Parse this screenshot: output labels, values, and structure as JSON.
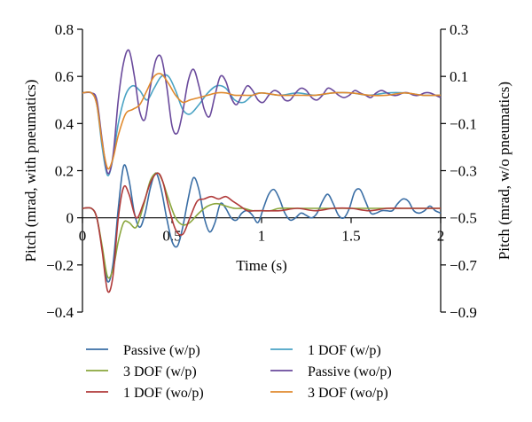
{
  "chart_data": {
    "type": "line",
    "title": "",
    "xlabel": "Time (s)",
    "ylabel_left": "Pitch (mrad, with pneumatics)",
    "ylabel_right": "Pitch (mrad, w/o pneumatics)",
    "xlim": [
      0,
      2
    ],
    "ylim_left": [
      -0.4,
      0.8
    ],
    "ylim_right": [
      -0.9,
      0.3
    ],
    "x_ticks": [
      0,
      0.5,
      1,
      1.5,
      2
    ],
    "x_tick_labels": [
      "0",
      "0.5",
      "1",
      "1.5",
      "2"
    ],
    "y_left_ticks": [
      -0.4,
      -0.2,
      0,
      0.2,
      0.4,
      0.6,
      0.8
    ],
    "y_left_tick_labels": [
      "−0.4",
      "−0.2",
      "0",
      "0.2",
      "0.4",
      "0.6",
      "0.8"
    ],
    "y_right_ticks": [
      -0.9,
      -0.7,
      -0.5,
      -0.3,
      -0.1,
      0.1,
      0.3
    ],
    "y_right_tick_labels": [
      "−0.9",
      "−0.7",
      "−0.5",
      "−0.3",
      "−0.1",
      "0.1",
      "0.3"
    ],
    "grid": false,
    "legend_position": "bottom",
    "series": [
      {
        "name": "Passive (w/p)",
        "axis": "left",
        "color": "#3a6ea5",
        "x": [
          0,
          0.05,
          0.08,
          0.11,
          0.14,
          0.17,
          0.2,
          0.23,
          0.26,
          0.29,
          0.32,
          0.35,
          0.38,
          0.41,
          0.44,
          0.47,
          0.5,
          0.53,
          0.56,
          0.59,
          0.62,
          0.65,
          0.68,
          0.71,
          0.74,
          0.77,
          0.8,
          0.83,
          0.86,
          0.89,
          0.92,
          0.95,
          0.98,
          1.01,
          1.04,
          1.07,
          1.1,
          1.13,
          1.16,
          1.19,
          1.22,
          1.25,
          1.28,
          1.31,
          1.34,
          1.37,
          1.4,
          1.43,
          1.46,
          1.49,
          1.52,
          1.55,
          1.58,
          1.61,
          1.64,
          1.67,
          1.7,
          1.73,
          1.76,
          1.79,
          1.82,
          1.85,
          1.88,
          1.91,
          1.94,
          1.97,
          2
        ],
        "y": [
          0.04,
          0.04,
          0.0,
          -0.13,
          -0.27,
          -0.2,
          0.04,
          0.22,
          0.16,
          0.02,
          -0.04,
          0.02,
          0.13,
          0.19,
          0.12,
          0.0,
          -0.1,
          -0.12,
          -0.04,
          0.08,
          0.17,
          0.12,
          0.0,
          -0.06,
          -0.02,
          0.06,
          0.04,
          0.0,
          -0.01,
          0.02,
          0.03,
          0.01,
          -0.02,
          0.04,
          0.1,
          0.12,
          0.08,
          0.02,
          -0.01,
          0.0,
          0.02,
          0.01,
          0.0,
          0.02,
          0.07,
          0.1,
          0.06,
          0.01,
          0.0,
          0.04,
          0.11,
          0.12,
          0.07,
          0.02,
          0.02,
          0.03,
          0.03,
          0.03,
          0.06,
          0.08,
          0.07,
          0.03,
          0.02,
          0.03,
          0.05,
          0.03,
          0.02
        ]
      },
      {
        "name": "3 DOF (w/p)",
        "axis": "left",
        "color": "#8aa63c",
        "x": [
          0,
          0.05,
          0.08,
          0.11,
          0.14,
          0.17,
          0.2,
          0.23,
          0.26,
          0.3,
          0.34,
          0.38,
          0.42,
          0.45,
          0.48,
          0.52,
          0.56,
          0.6,
          0.65,
          0.7,
          0.75,
          0.8,
          0.85,
          0.9,
          0.95,
          1.0,
          1.05,
          1.1,
          1.2,
          1.3,
          1.4,
          1.5,
          1.6,
          1.7,
          1.8,
          1.9,
          2
        ],
        "y": [
          0.04,
          0.04,
          0.0,
          -0.12,
          -0.25,
          -0.22,
          -0.1,
          -0.02,
          -0.02,
          -0.04,
          0.05,
          0.16,
          0.19,
          0.15,
          0.08,
          0.0,
          -0.03,
          -0.02,
          0.02,
          0.05,
          0.06,
          0.05,
          0.04,
          0.04,
          0.03,
          0.03,
          0.03,
          0.04,
          0.04,
          0.04,
          0.04,
          0.04,
          0.04,
          0.04,
          0.04,
          0.04,
          0.04
        ]
      },
      {
        "name": "1 DOF (wo/p)",
        "axis": "right",
        "color": "#b03a3a",
        "x": [
          0,
          0.05,
          0.08,
          0.11,
          0.14,
          0.17,
          0.2,
          0.23,
          0.26,
          0.3,
          0.34,
          0.38,
          0.42,
          0.45,
          0.48,
          0.52,
          0.56,
          0.6,
          0.64,
          0.68,
          0.72,
          0.76,
          0.8,
          0.84,
          0.88,
          0.92,
          0.96,
          1.0,
          1.1,
          1.2,
          1.3,
          1.4,
          1.5,
          1.6,
          1.7,
          1.8,
          1.9,
          2
        ],
        "y": [
          -0.46,
          -0.46,
          -0.5,
          -0.64,
          -0.81,
          -0.75,
          -0.5,
          -0.37,
          -0.4,
          -0.5,
          -0.44,
          -0.35,
          -0.31,
          -0.35,
          -0.45,
          -0.55,
          -0.57,
          -0.5,
          -0.43,
          -0.42,
          -0.41,
          -0.42,
          -0.41,
          -0.43,
          -0.45,
          -0.47,
          -0.47,
          -0.47,
          -0.47,
          -0.46,
          -0.47,
          -0.46,
          -0.46,
          -0.47,
          -0.46,
          -0.46,
          -0.46,
          -0.46
        ]
      },
      {
        "name": "1 DOF (w/p)",
        "axis": "left",
        "color": "#4aa3c4",
        "x": [
          0,
          0.05,
          0.08,
          0.11,
          0.14,
          0.17,
          0.2,
          0.24,
          0.28,
          0.32,
          0.36,
          0.4,
          0.44,
          0.48,
          0.52,
          0.56,
          0.6,
          0.65,
          0.7,
          0.75,
          0.8,
          0.85,
          0.9,
          0.95,
          1.0,
          1.1,
          1.2,
          1.3,
          1.4,
          1.5,
          1.6,
          1.7,
          1.8,
          1.9,
          2
        ],
        "y": [
          0.53,
          0.53,
          0.48,
          0.3,
          0.18,
          0.25,
          0.4,
          0.52,
          0.56,
          0.54,
          0.5,
          0.55,
          0.6,
          0.6,
          0.54,
          0.46,
          0.44,
          0.48,
          0.53,
          0.56,
          0.55,
          0.5,
          0.49,
          0.52,
          0.53,
          0.52,
          0.53,
          0.52,
          0.53,
          0.53,
          0.52,
          0.53,
          0.53,
          0.52,
          0.52
        ]
      },
      {
        "name": "Passive (wo/p)",
        "axis": "right",
        "color": "#6a4a9c",
        "x": [
          0,
          0.05,
          0.08,
          0.11,
          0.14,
          0.17,
          0.2,
          0.23,
          0.26,
          0.29,
          0.32,
          0.35,
          0.38,
          0.41,
          0.44,
          0.47,
          0.5,
          0.53,
          0.56,
          0.59,
          0.62,
          0.65,
          0.68,
          0.71,
          0.74,
          0.77,
          0.8,
          0.83,
          0.86,
          0.89,
          0.92,
          0.95,
          0.98,
          1.01,
          1.04,
          1.07,
          1.1,
          1.13,
          1.16,
          1.19,
          1.22,
          1.25,
          1.28,
          1.31,
          1.34,
          1.37,
          1.4,
          1.43,
          1.46,
          1.49,
          1.52,
          1.55,
          1.58,
          1.61,
          1.64,
          1.67,
          1.7,
          1.73,
          1.76,
          1.79,
          1.82,
          1.85,
          1.88,
          1.91,
          1.94,
          1.97,
          2
        ],
        "y": [
          0.03,
          0.03,
          0.0,
          -0.17,
          -0.31,
          -0.24,
          0.0,
          0.16,
          0.21,
          0.1,
          -0.05,
          -0.08,
          0.06,
          0.17,
          0.18,
          0.06,
          -0.11,
          -0.14,
          -0.05,
          0.08,
          0.13,
          0.06,
          -0.04,
          -0.07,
          0.02,
          0.1,
          0.08,
          0.01,
          -0.02,
          0.02,
          0.06,
          0.04,
          0.0,
          -0.01,
          0.02,
          0.04,
          0.03,
          0.0,
          0.0,
          0.03,
          0.05,
          0.04,
          0.01,
          0.0,
          0.02,
          0.05,
          0.04,
          0.02,
          0.01,
          0.02,
          0.04,
          0.03,
          0.02,
          0.01,
          0.03,
          0.04,
          0.03,
          0.02,
          0.02,
          0.03,
          0.03,
          0.02,
          0.02,
          0.03,
          0.03,
          0.02,
          0.01
        ]
      },
      {
        "name": "3 DOF (wo/p)",
        "axis": "right",
        "color": "#e08a2e",
        "x": [
          0,
          0.05,
          0.08,
          0.11,
          0.14,
          0.17,
          0.2,
          0.24,
          0.28,
          0.32,
          0.36,
          0.4,
          0.44,
          0.48,
          0.52,
          0.56,
          0.6,
          0.65,
          0.7,
          0.75,
          0.8,
          0.85,
          0.9,
          0.95,
          1.0,
          1.1,
          1.2,
          1.3,
          1.4,
          1.5,
          1.6,
          1.7,
          1.8,
          1.9,
          2
        ],
        "y": [
          0.03,
          0.03,
          -0.02,
          -0.18,
          -0.29,
          -0.25,
          -0.15,
          -0.06,
          -0.04,
          -0.02,
          0.04,
          0.1,
          0.11,
          0.07,
          0.02,
          -0.01,
          0.0,
          0.01,
          0.02,
          0.03,
          0.03,
          0.02,
          0.02,
          0.02,
          0.03,
          0.02,
          0.02,
          0.02,
          0.03,
          0.03,
          0.02,
          0.02,
          0.03,
          0.02,
          0.02
        ]
      }
    ]
  }
}
